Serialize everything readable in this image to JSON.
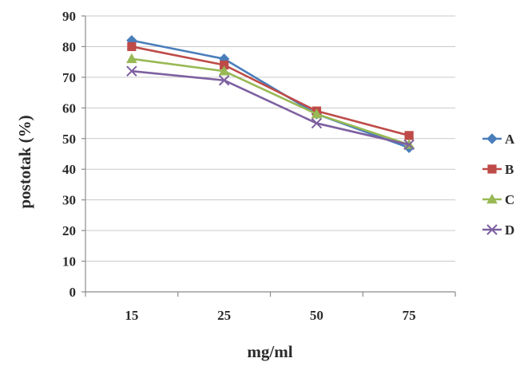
{
  "chart_data": {
    "type": "line",
    "title": "",
    "xlabel": "mg/ml",
    "ylabel": "postotak (%)",
    "categories": [
      "15",
      "25",
      "50",
      "75"
    ],
    "yticks": [
      "0",
      "10",
      "20",
      "30",
      "40",
      "50",
      "60",
      "70",
      "80",
      "90"
    ],
    "ylim": [
      0,
      90
    ],
    "grid": true,
    "legend_position": "right",
    "series": [
      {
        "name": "A",
        "color": "#4a7ebb",
        "marker": "diamond",
        "values": [
          82,
          76,
          58,
          47
        ]
      },
      {
        "name": "B",
        "color": "#be4b48",
        "marker": "square",
        "values": [
          80,
          74,
          59,
          51
        ]
      },
      {
        "name": "C",
        "color": "#98b954",
        "marker": "triangle",
        "values": [
          76,
          72,
          58,
          48
        ]
      },
      {
        "name": "D",
        "color": "#7d60a0",
        "marker": "x",
        "values": [
          72,
          69,
          55,
          48
        ]
      }
    ]
  }
}
